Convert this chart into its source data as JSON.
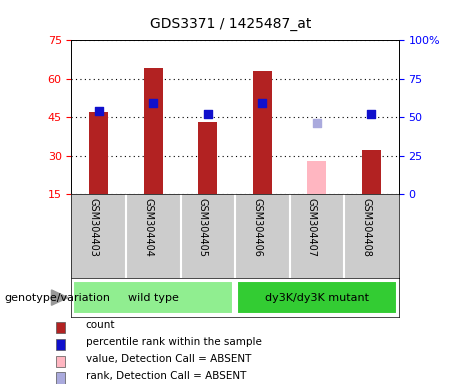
{
  "title": "GDS3371 / 1425487_at",
  "categories": [
    "GSM304403",
    "GSM304404",
    "GSM304405",
    "GSM304406",
    "GSM304407",
    "GSM304408"
  ],
  "groups": [
    "wild type",
    "wild type",
    "wild type",
    "dy3K/dy3K mutant",
    "dy3K/dy3K mutant",
    "dy3K/dy3K mutant"
  ],
  "bar_values": [
    47,
    64,
    43,
    63,
    null,
    32
  ],
  "bar_absent_values": [
    null,
    null,
    null,
    null,
    28,
    null
  ],
  "dot_values": [
    54,
    59,
    52,
    59,
    null,
    52
  ],
  "dot_absent_values": [
    null,
    null,
    null,
    null,
    46,
    null
  ],
  "bar_color": "#B22222",
  "bar_absent_color": "#FFB6C1",
  "dot_color": "#1010CC",
  "dot_absent_color": "#AAAADD",
  "left_ylim": [
    15,
    75
  ],
  "left_yticks": [
    15,
    30,
    45,
    60,
    75
  ],
  "right_ylim": [
    0,
    100
  ],
  "right_yticks": [
    0,
    25,
    50,
    75,
    100
  ],
  "right_yticklabels": [
    "0",
    "25",
    "50",
    "75",
    "100%"
  ],
  "group_colors": {
    "wild type": "#90EE90",
    "dy3K/dy3K mutant": "#33CC33"
  },
  "group_label": "genotype/variation",
  "legend_items": [
    {
      "label": "count",
      "color": "#B22222"
    },
    {
      "label": "percentile rank within the sample",
      "color": "#1010CC"
    },
    {
      "label": "value, Detection Call = ABSENT",
      "color": "#FFB6C1"
    },
    {
      "label": "rank, Detection Call = ABSENT",
      "color": "#AAAADD"
    }
  ],
  "bar_width": 0.35,
  "dot_size": 28,
  "background_color": "#ffffff",
  "xlabel_area_color": "#CCCCCC"
}
